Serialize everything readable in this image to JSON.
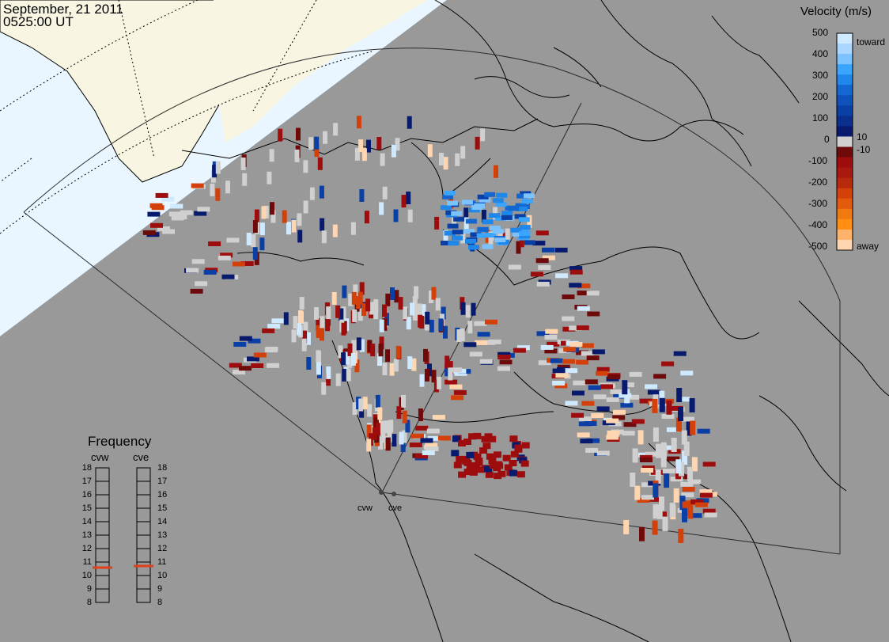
{
  "header": {
    "date": "September, 21 2011",
    "time": "0525:00 UT"
  },
  "colorbar": {
    "title": "Velocity (m/s)",
    "ticks": [
      "500",
      "400",
      "300",
      "200",
      "100",
      "0",
      "-100",
      "-200",
      "-300",
      "-400",
      "-500"
    ],
    "toward_label": "toward",
    "away_label": "away",
    "inner_pos_label": "10",
    "inner_neg_label": "-10",
    "colors": {
      "toward_500": "#cfe9ff",
      "toward_300": "#3aa5ff",
      "toward_100": "#0a3fa5",
      "toward_10": "#071a6e",
      "zero": "#d0d0d0",
      "away_10": "#6e0a0a",
      "away_100": "#9d0d0d",
      "away_250": "#d4400a",
      "away_400": "#ff8e12",
      "away_500": "#ffd6b0"
    }
  },
  "frequency": {
    "title": "Frequency",
    "radars": [
      {
        "name": "cvw",
        "value_mhz": 10.5
      },
      {
        "name": "cve",
        "value_mhz": 10.6
      }
    ],
    "ticks": [
      "18",
      "17",
      "16",
      "15",
      "14",
      "13",
      "12",
      "11",
      "10",
      "9",
      "8"
    ],
    "marker_color": "#e0401a"
  },
  "sites": {
    "west": "cvw",
    "east": "cve"
  },
  "map": {
    "background_color": "#999999",
    "sunlit_ocean_color": "#e9f6ff",
    "sunlit_land_color": "#f8f6e2",
    "coastline_color": "#000000",
    "fov_outline_color": "#2a2a2a"
  }
}
